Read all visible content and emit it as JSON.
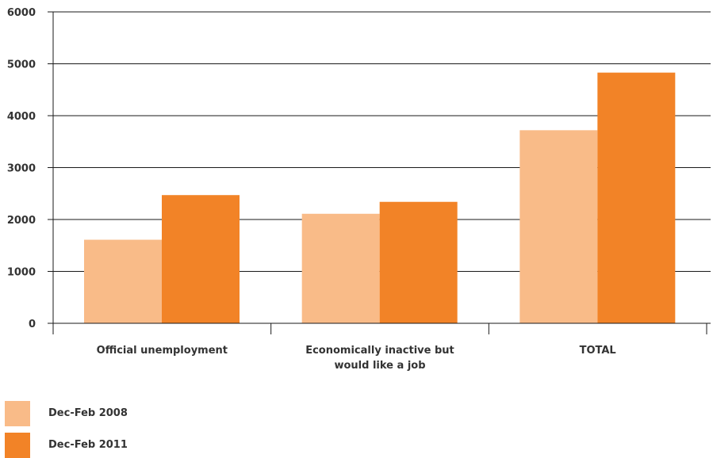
{
  "chart_data": {
    "type": "bar",
    "title": "",
    "xlabel": "",
    "ylabel": "",
    "categories": [
      [
        "Official unemployment"
      ],
      [
        "Economically inactive but",
        "would like a job"
      ],
      [
        "TOTAL"
      ]
    ],
    "series": [
      {
        "name": "Dec-Feb 2008",
        "color": "#f9bb88",
        "values": [
          1610,
          2110,
          3720
        ]
      },
      {
        "name": "Dec-Feb 2011",
        "color": "#f28327",
        "values": [
          2470,
          2340,
          4830
        ]
      }
    ],
    "ylim": [
      0,
      6000
    ],
    "yticks": [
      0,
      1000,
      2000,
      3000,
      4000,
      5000,
      6000
    ],
    "grid": true,
    "legend_position": "bottom-left"
  }
}
